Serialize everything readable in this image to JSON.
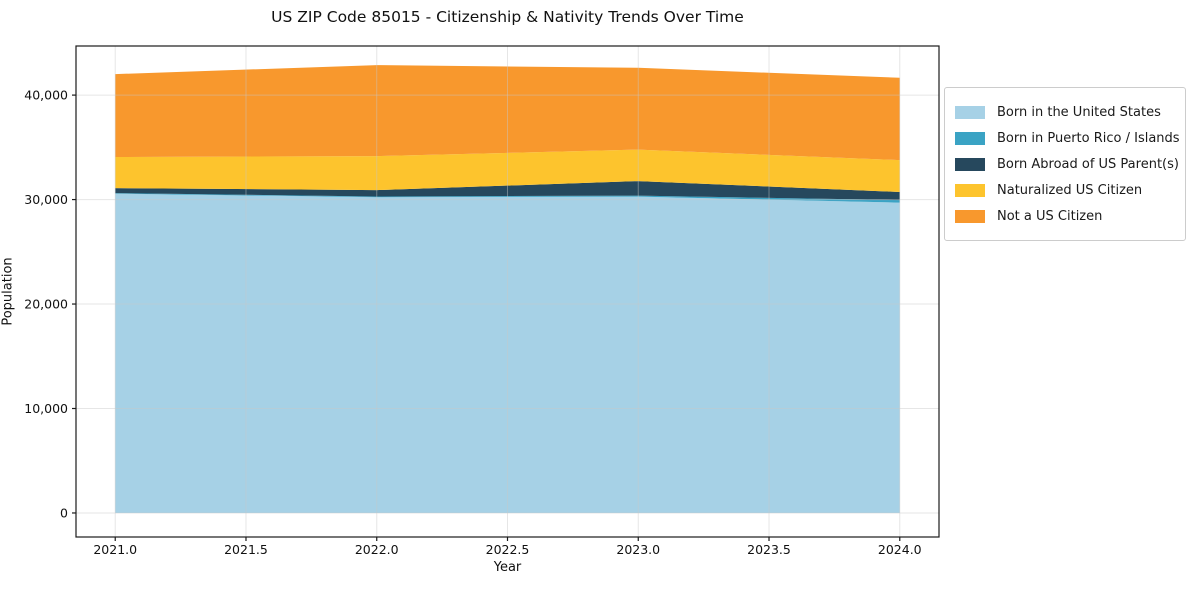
{
  "title": "US ZIP Code 85015 - Citizenship & Nativity Trends Over Time",
  "chart_data": {
    "type": "area",
    "stacked": true,
    "title": "US ZIP Code 85015 - Citizenship & Nativity Trends Over Time",
    "xlabel": "Year",
    "ylabel": "Population",
    "x": [
      2021,
      2022,
      2023,
      2024
    ],
    "series": [
      {
        "name": "Born in the United States",
        "color": "#a6d1e6",
        "values": [
          30560,
          30230,
          30280,
          29710
        ]
      },
      {
        "name": "Born in Puerto Rico / Islands",
        "color": "#3aa3c4",
        "values": [
          60,
          60,
          100,
          240
        ]
      },
      {
        "name": "Born Abroad of US Parent(s)",
        "color": "#26485d",
        "values": [
          480,
          620,
          1390,
          770
        ]
      },
      {
        "name": "Naturalized US Citizen",
        "color": "#fdc42d",
        "values": [
          2970,
          3250,
          3010,
          3060
        ]
      },
      {
        "name": "Not a US Citizen",
        "color": "#f8982d",
        "values": [
          7940,
          8710,
          7830,
          7880
        ]
      }
    ],
    "totals": [
      42010,
      42870,
      42610,
      41660
    ],
    "xlim": [
      2020.85,
      2024.15
    ],
    "ylim": [
      -2300,
      44700
    ],
    "xticks": [
      2021.0,
      2021.5,
      2022.0,
      2022.5,
      2023.0,
      2023.5,
      2024.0
    ],
    "xtick_labels": [
      "2021.0",
      "2021.5",
      "2022.0",
      "2022.5",
      "2023.0",
      "2023.5",
      "2024.0"
    ],
    "yticks": [
      0,
      10000,
      20000,
      30000,
      40000
    ],
    "ytick_labels": [
      "0",
      "10,000",
      "20,000",
      "30,000",
      "40,000"
    ],
    "grid": true,
    "legend_position": "right of plot",
    "colors": {
      "spine": "#1a1a1a",
      "grid": "#c8c8c8",
      "tick_text": "#111111",
      "background": "#ffffff"
    }
  }
}
